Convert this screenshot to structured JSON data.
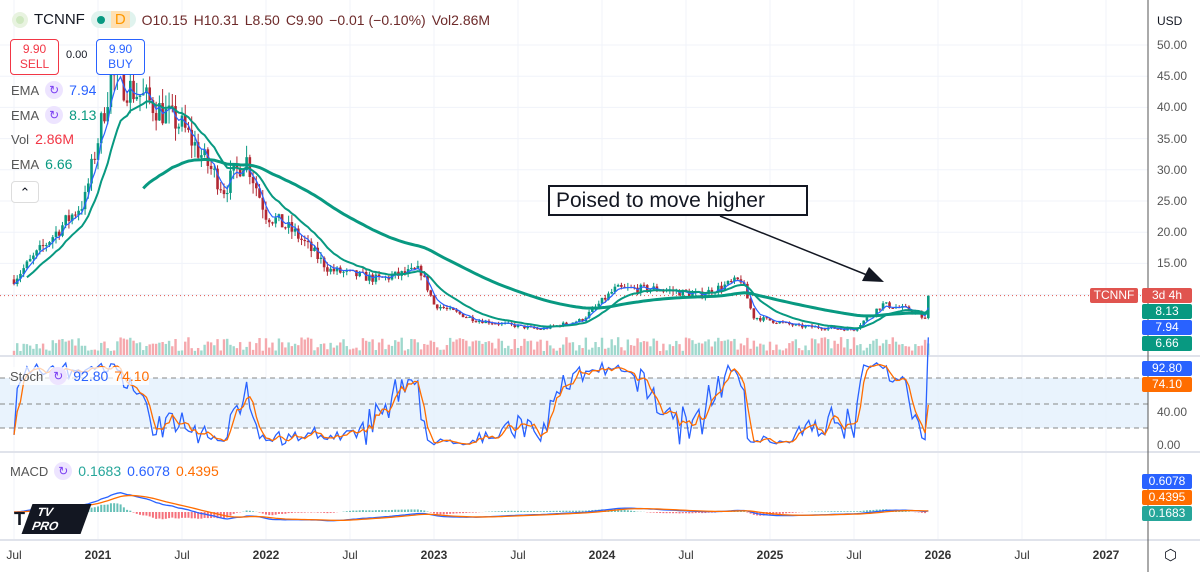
{
  "header": {
    "symbol": "TCNNF",
    "interval": "D",
    "open": "O10.15",
    "high": "H10.31",
    "low": "L8.50",
    "close": "C9.90",
    "change": "−0.01 (−0.10%)",
    "vol": "Vol2.86M"
  },
  "trade": {
    "sell_price": "9.90",
    "sell_label": "SELL",
    "spread": "0.00",
    "buy_price": "9.90",
    "buy_label": "BUY"
  },
  "indicators": [
    {
      "name": "EMA",
      "value": "7.94",
      "color": "#2962ff"
    },
    {
      "name": "EMA",
      "value": "8.13",
      "color": "#089981"
    },
    {
      "name": "Vol",
      "value": "2.86M",
      "color": "#f23645"
    },
    {
      "name": "EMA",
      "value": "6.66",
      "color": "#089981"
    }
  ],
  "stoch": {
    "name": "Stoch",
    "k": "92.80",
    "d": "74.10",
    "ticks": [
      "40.00",
      "0.00"
    ]
  },
  "macd": {
    "name": "MACD",
    "hist": "0.1683",
    "macd": "0.6078",
    "signal": "0.4395"
  },
  "price_axis": {
    "currency": "USD",
    "ticks": [
      "50.00",
      "45.00",
      "40.00",
      "35.00",
      "30.00",
      "25.00",
      "20.00",
      "15.00"
    ],
    "symbol_tag": "TCNNF",
    "countdown": "3d 4h",
    "ema_tags": [
      "8.13",
      "7.94",
      "6.66"
    ]
  },
  "time_axis": [
    {
      "label": "Jul",
      "bold": false
    },
    {
      "label": "2021",
      "bold": true
    },
    {
      "label": "Jul",
      "bold": false
    },
    {
      "label": "2022",
      "bold": true
    },
    {
      "label": "Jul",
      "bold": false
    },
    {
      "label": "2023",
      "bold": true
    },
    {
      "label": "Jul",
      "bold": false
    },
    {
      "label": "2024",
      "bold": true
    },
    {
      "label": "Jul",
      "bold": false
    },
    {
      "label": "2025",
      "bold": true
    },
    {
      "label": "Jul",
      "bold": false
    },
    {
      "label": "2026",
      "bold": true
    },
    {
      "label": "Jul",
      "bold": false
    },
    {
      "label": "2027",
      "bold": true
    }
  ],
  "annotation": "Poised to move higher",
  "logo": "TV PRO",
  "chart_data": {
    "type": "candlestick",
    "symbol": "TCNNF",
    "ylim": [
      0,
      52
    ],
    "xlim": [
      2020.45,
      2027.25
    ],
    "closes": [
      [
        2020.5,
        12.5
      ],
      [
        2020.75,
        20
      ],
      [
        2020.92,
        25
      ],
      [
        2021.08,
        45
      ],
      [
        2021.25,
        42
      ],
      [
        2021.5,
        37
      ],
      [
        2021.75,
        27
      ],
      [
        2021.88,
        32
      ],
      [
        2022.0,
        23
      ],
      [
        2022.17,
        20
      ],
      [
        2022.38,
        14
      ],
      [
        2022.67,
        12.5
      ],
      [
        2022.92,
        14
      ],
      [
        2023.0,
        8.5
      ],
      [
        2023.25,
        6
      ],
      [
        2023.63,
        4.5
      ],
      [
        2023.88,
        6
      ],
      [
        2024.08,
        11
      ],
      [
        2024.33,
        11
      ],
      [
        2024.58,
        10
      ],
      [
        2024.83,
        12.5
      ],
      [
        2024.9,
        6.5
      ],
      [
        2025.17,
        5
      ],
      [
        2025.5,
        4.5
      ],
      [
        2025.67,
        8.5
      ],
      [
        2025.85,
        7.5
      ],
      [
        2025.93,
        6
      ],
      [
        2025.96,
        9.9
      ]
    ],
    "last_price": 9.9,
    "colors": {
      "up": "#089981",
      "down": "#b22833",
      "ema_fast": "#2962ff",
      "ema_slow": "#089981",
      "stoch_k": "#2962ff",
      "stoch_d": "#ff6d00"
    }
  }
}
